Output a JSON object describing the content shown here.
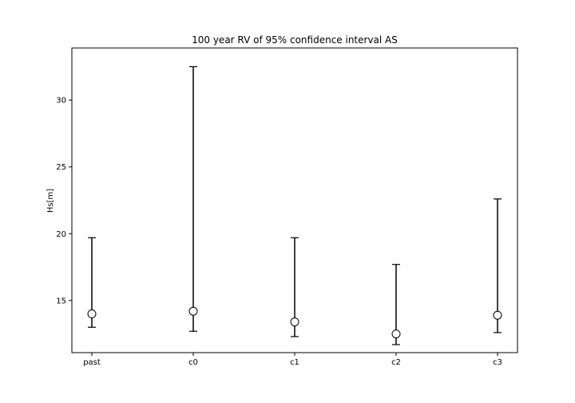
{
  "chart_data": {
    "type": "scatter",
    "title": "100 year RV of 95% confidence interval AS",
    "xlabel": "",
    "ylabel": "Hs[m]",
    "categories": [
      "past",
      "c0",
      "c1",
      "c2",
      "c3"
    ],
    "series": [
      {
        "values": [
          14.0,
          14.2,
          13.4,
          12.5,
          13.9
        ],
        "lower": [
          13.0,
          12.7,
          12.3,
          11.7,
          12.6
        ],
        "upper": [
          19.7,
          32.5,
          19.7,
          17.7,
          22.6
        ]
      }
    ],
    "ylim": [
      11.1,
      33.9
    ],
    "yticks": [
      15,
      20,
      25,
      30
    ],
    "grid": false,
    "legend": "none"
  }
}
